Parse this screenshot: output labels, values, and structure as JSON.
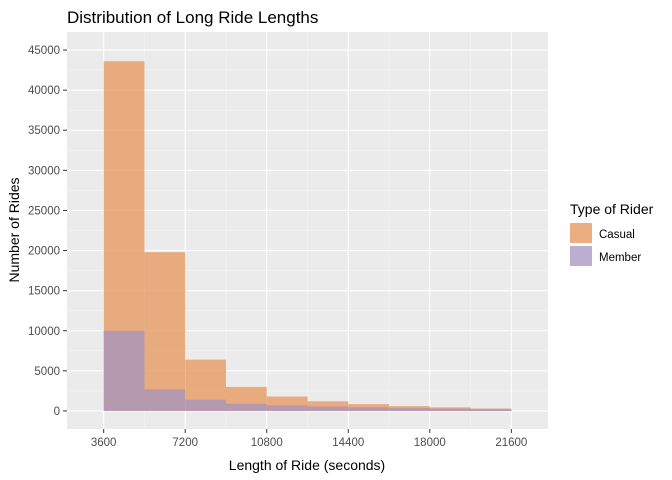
{
  "chart_data": {
    "type": "bar",
    "title": "Distribution of Long Ride Lengths",
    "xlabel": "Length of Ride (seconds)",
    "ylabel": "Number of Rides",
    "xlim": [
      3600,
      21600
    ],
    "ylim": [
      0,
      45000
    ],
    "x_ticks": [
      3600,
      7200,
      10800,
      14400,
      18000,
      21600
    ],
    "y_ticks": [
      0,
      5000,
      10000,
      15000,
      20000,
      25000,
      30000,
      35000,
      40000,
      45000
    ],
    "bin_edges": [
      3600,
      5400,
      7200,
      9000,
      10800,
      12600,
      14400,
      16200,
      18000,
      19800,
      21600
    ],
    "series": [
      {
        "name": "Casual",
        "color": "#E6A06B",
        "values": [
          43600,
          19800,
          6400,
          3000,
          1800,
          1200,
          850,
          600,
          450,
          300
        ]
      },
      {
        "name": "Member",
        "color": "#A493C0",
        "values": [
          10000,
          2700,
          1400,
          900,
          700,
          550,
          450,
          350,
          280,
          220
        ]
      }
    ],
    "legend": {
      "title": "Type of Rider",
      "position": "right"
    },
    "grid": true
  }
}
